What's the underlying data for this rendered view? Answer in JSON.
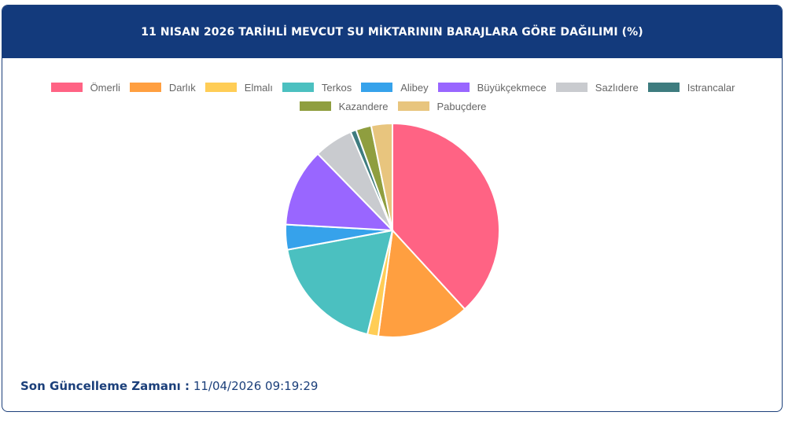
{
  "header": {
    "title": "11 NISAN 2026 TARİHLİ MEVCUT SU MİKTARININ BARAJLARA GÖRE DAĞILIMI (%)"
  },
  "chart_data": {
    "type": "pie",
    "title": "11 NISAN 2026 TARİHLİ MEVCUT SU MİKTARININ BARAJLARA GÖRE DAĞILIMI (%)",
    "legend_position": "top",
    "categories": [
      "Ömerli",
      "Darlık",
      "Elmalı",
      "Terkos",
      "Alibey",
      "Büyükçekmece",
      "Sazlıdere",
      "Istrancalar",
      "Kazandere",
      "Pabuçdere"
    ],
    "values": [
      39.4,
      14.4,
      1.7,
      18.9,
      3.9,
      12.2,
      6.1,
      0.9,
      2.4,
      3.3
    ],
    "colors": [
      "#ff6384",
      "#ff9f40",
      "#ffcd56",
      "#4bc0c0",
      "#36a2eb",
      "#9966ff",
      "#c9cbcf",
      "#3e7c7f",
      "#8f9e3f",
      "#e8c57e"
    ]
  },
  "footer": {
    "label": "Son Güncelleme Zamanı :",
    "value": "11/04/2026 09:19:29"
  }
}
